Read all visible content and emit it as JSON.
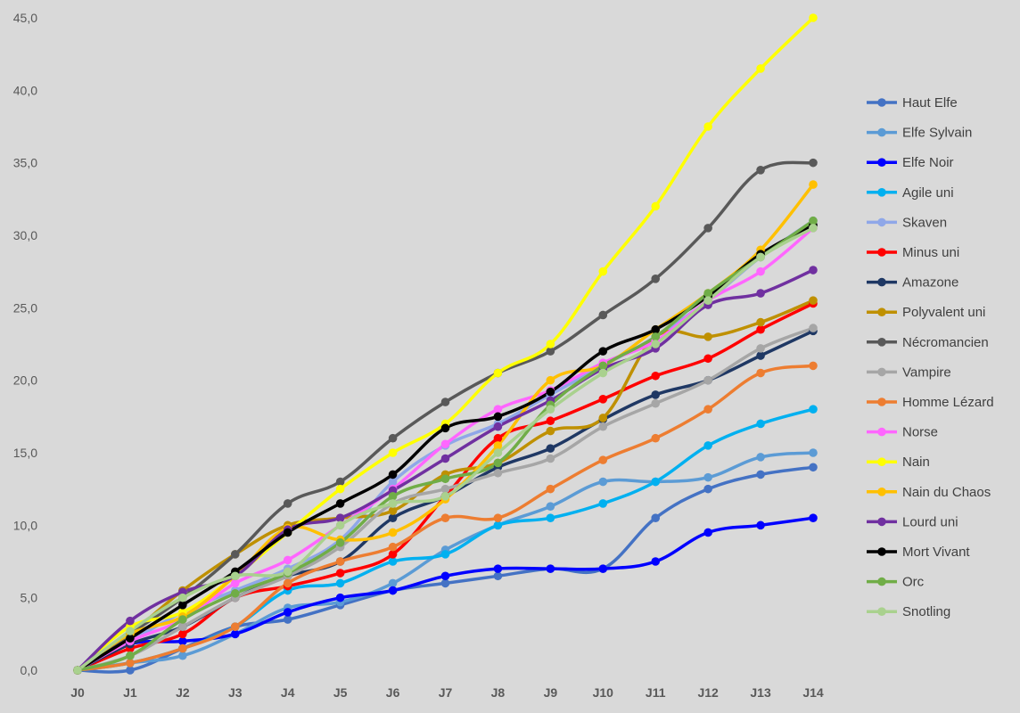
{
  "chart_data": {
    "type": "line",
    "title": "",
    "xlabel": "",
    "ylabel": "",
    "categories": [
      "J0",
      "J1",
      "J2",
      "J3",
      "J4",
      "J5",
      "J6",
      "J7",
      "J8",
      "J9",
      "J10",
      "J11",
      "J12",
      "J13",
      "J14"
    ],
    "ylim": [
      0,
      45
    ],
    "yticks": [
      "0,0",
      "5,0",
      "10,0",
      "15,0",
      "20,0",
      "25,0",
      "30,0",
      "35,0",
      "40,0",
      "45,0"
    ],
    "grid": false,
    "legend_position": "right",
    "series": [
      {
        "name": "Haut Elfe",
        "color": "#4472c4",
        "values": [
          0,
          0,
          1.5,
          3,
          3.5,
          4.5,
          5.5,
          6,
          6.5,
          7,
          7,
          10.5,
          12.5,
          13.5,
          14
        ]
      },
      {
        "name": "Elfe Sylvain",
        "color": "#5b9bd5",
        "values": [
          0,
          0.5,
          1,
          2.5,
          4.3,
          4.7,
          6,
          8.3,
          10,
          11.3,
          13,
          13,
          13.3,
          14.7,
          15
        ]
      },
      {
        "name": "Elfe Noir",
        "color": "#0000ff",
        "values": [
          0,
          1.8,
          2,
          2.5,
          4,
          5,
          5.5,
          6.5,
          7,
          7,
          7,
          7.5,
          9.5,
          10,
          10.5
        ]
      },
      {
        "name": "Agile uni",
        "color": "#00b0f0",
        "values": [
          0,
          0.5,
          1.5,
          3,
          5.5,
          6,
          7.5,
          8,
          10,
          10.5,
          11.5,
          13,
          15.5,
          17,
          18
        ]
      },
      {
        "name": "Skaven",
        "color": "#8fa7e8",
        "values": [
          0,
          2,
          4,
          5.5,
          7,
          9,
          13,
          15.5,
          17,
          19,
          21,
          23,
          25.5,
          28.5,
          31
        ]
      },
      {
        "name": "Minus uni",
        "color": "#ff0000",
        "values": [
          0,
          1.5,
          2.5,
          5,
          5.8,
          6.7,
          8,
          12,
          16,
          17.2,
          18.7,
          20.3,
          21.5,
          23.5,
          25.3
        ]
      },
      {
        "name": "Amazone",
        "color": "#1f3864",
        "values": [
          0,
          1.8,
          3,
          5,
          6.5,
          7.5,
          10.5,
          12,
          14,
          15.3,
          17.3,
          19,
          20,
          21.7,
          23.4
        ]
      },
      {
        "name": "Polyvalent uni",
        "color": "#bf9000",
        "values": [
          0,
          2.5,
          5.5,
          8,
          10,
          10.5,
          11,
          13.5,
          14.3,
          16.5,
          17.4,
          23,
          23,
          24,
          25.5
        ]
      },
      {
        "name": "Nécromancien",
        "color": "#595959",
        "values": [
          0,
          2.5,
          5,
          8,
          11.5,
          13,
          16,
          18.5,
          20.5,
          22,
          24.5,
          27,
          30.5,
          34.5,
          35
        ]
      },
      {
        "name": "Vampire",
        "color": "#a6a6a6",
        "values": [
          0,
          1,
          3,
          5,
          6.5,
          8.5,
          11.5,
          12.5,
          13.6,
          14.6,
          16.8,
          18.4,
          20,
          22.2,
          23.6
        ]
      },
      {
        "name": "Homme Lézard",
        "color": "#ed7d31",
        "values": [
          0,
          0.5,
          1.5,
          3,
          6,
          7.5,
          8.5,
          10.5,
          10.5,
          12.5,
          14.5,
          16,
          18,
          20.5,
          21
        ]
      },
      {
        "name": "Norse",
        "color": "#ff66ff",
        "values": [
          0,
          2,
          3.5,
          6,
          7.6,
          10,
          12.5,
          15.6,
          18,
          19.3,
          21.2,
          22.7,
          25.5,
          27.5,
          30.5
        ]
      },
      {
        "name": "Nain",
        "color": "#ffff00",
        "values": [
          0,
          3,
          4,
          6.5,
          9.5,
          12.5,
          15,
          17,
          20.5,
          22.5,
          27.5,
          32,
          37.5,
          41.5,
          45
        ]
      },
      {
        "name": "Nain du Chaos",
        "color": "#ffc000",
        "values": [
          0,
          2.5,
          3.7,
          6.5,
          9.8,
          9,
          9.5,
          11.8,
          15.5,
          20,
          21,
          23.5,
          26,
          29,
          33.5
        ]
      },
      {
        "name": "Lourd uni",
        "color": "#7030a0",
        "values": [
          0,
          3.4,
          5.4,
          6.5,
          9.7,
          10.5,
          12.4,
          14.6,
          16.8,
          18.6,
          20.8,
          22.2,
          25.2,
          26,
          27.6
        ]
      },
      {
        "name": "Mort Vivant",
        "color": "#000000",
        "values": [
          0,
          2.2,
          4.5,
          6.8,
          9.5,
          11.5,
          13.5,
          16.7,
          17.5,
          19.2,
          22,
          23.5,
          25.8,
          28.7,
          30.7
        ]
      },
      {
        "name": "Orc",
        "color": "#70ad47",
        "values": [
          0,
          1,
          3.5,
          5.3,
          6.7,
          8.8,
          12,
          13.2,
          14.3,
          18.3,
          21,
          23,
          26,
          28.5,
          31
        ]
      },
      {
        "name": "Snotling",
        "color": "#a9d18e",
        "values": [
          0,
          2.7,
          5,
          6.5,
          6.8,
          10,
          11.5,
          12,
          15,
          18,
          20.5,
          22.5,
          25.5,
          28.5,
          30.5
        ]
      }
    ]
  }
}
